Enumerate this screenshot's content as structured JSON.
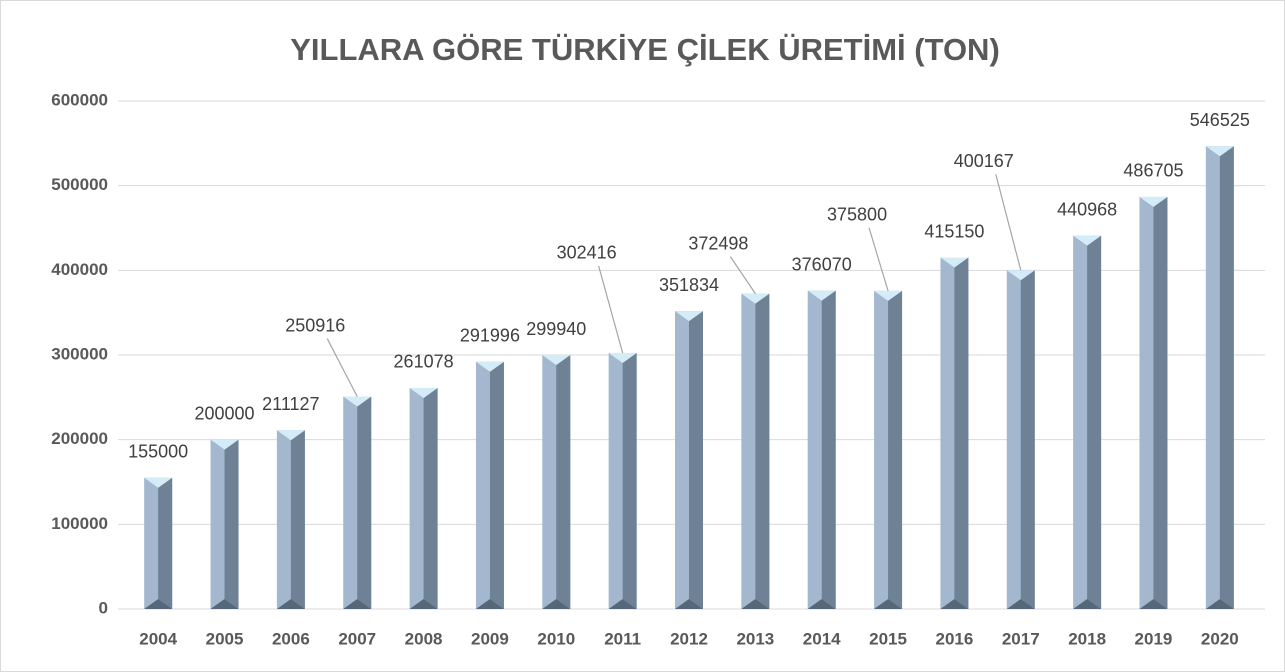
{
  "chart_data": {
    "type": "bar",
    "title": "YILLARA GÖRE TÜRKİYE ÇİLEK ÜRETİMİ (TON)",
    "categories": [
      "2004",
      "2005",
      "2006",
      "2007",
      "2008",
      "2009",
      "2010",
      "2011",
      "2012",
      "2013",
      "2014",
      "2015",
      "2016",
      "2017",
      "2018",
      "2019",
      "2020"
    ],
    "values": [
      155000,
      200000,
      211127,
      250916,
      261078,
      291996,
      299940,
      302416,
      351834,
      372498,
      376070,
      375800,
      415150,
      400167,
      440968,
      486705,
      546525
    ],
    "color": "#a3b8cf",
    "ylim": [
      0,
      600000
    ],
    "yticks": [
      0,
      100000,
      200000,
      300000,
      400000,
      500000,
      600000
    ],
    "grid": true
  }
}
